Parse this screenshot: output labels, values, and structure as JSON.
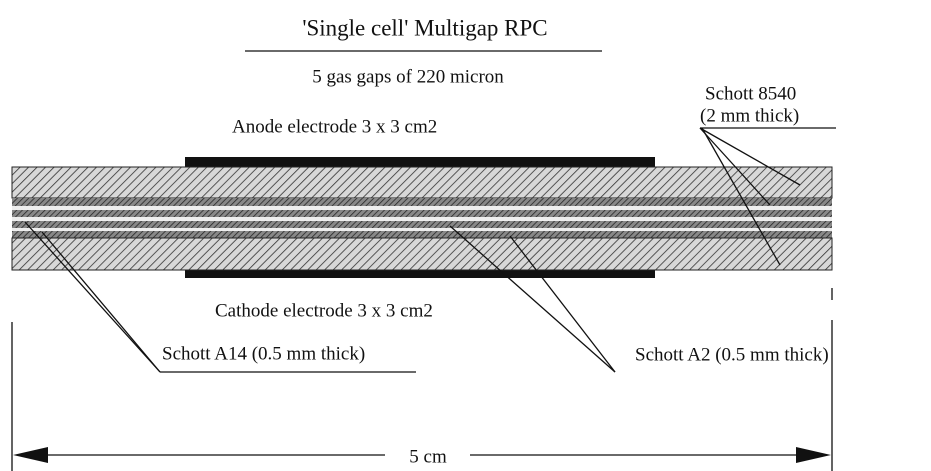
{
  "title": "'Single cell' Multigap RPC",
  "subtitle": "5 gas gaps of 220 micron",
  "labels": {
    "anode": "Anode electrode  3 x 3 cm2",
    "schott_8540": "Schott 8540",
    "schott_8540_thickness": "(2 mm thick)",
    "cathode": "Cathode electrode  3 x 3 cm2",
    "schott_a14": "Schott A14 (0.5 mm thick)",
    "schott_a2": "Schott A2 (0.5 mm thick)",
    "width": "5 cm"
  }
}
